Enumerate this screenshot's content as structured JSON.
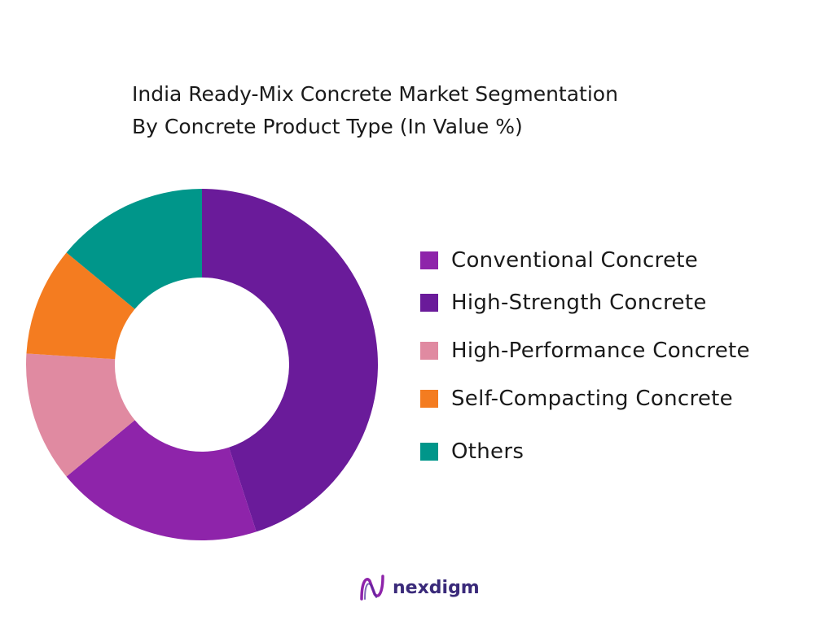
{
  "title": {
    "line1": "India Ready-Mix Concrete Market Segmentation",
    "line2": "By Concrete Product Type (In Value %)"
  },
  "brand": {
    "name": "nexdigm",
    "logo_text": "N"
  },
  "chart_data": {
    "type": "pie",
    "donut": true,
    "title": "India Ready-Mix Concrete Market Segmentation By Concrete Product Type (In Value %)",
    "legend_position": "right",
    "categories": [
      "High-Strength Concrete",
      "Conventional Concrete",
      "High-Performance Concrete",
      "Self-Compacting Concrete",
      "Others"
    ],
    "values": [
      45,
      19,
      12,
      10,
      14
    ],
    "colors": [
      "#6a1b9a",
      "#8e24aa",
      "#e08aa1",
      "#f47c20",
      "#00968a"
    ],
    "legend": [
      {
        "label": "Conventional Concrete",
        "color": "#8e24aa"
      },
      {
        "label": "High-Strength Concrete",
        "color": "#6a1b9a"
      },
      {
        "label": "High-Performance Concrete",
        "color": "#e08aa1"
      },
      {
        "label": "Self-Compacting Concrete",
        "color": "#f47c20"
      },
      {
        "label": "Others",
        "color": "#00968a"
      }
    ]
  }
}
